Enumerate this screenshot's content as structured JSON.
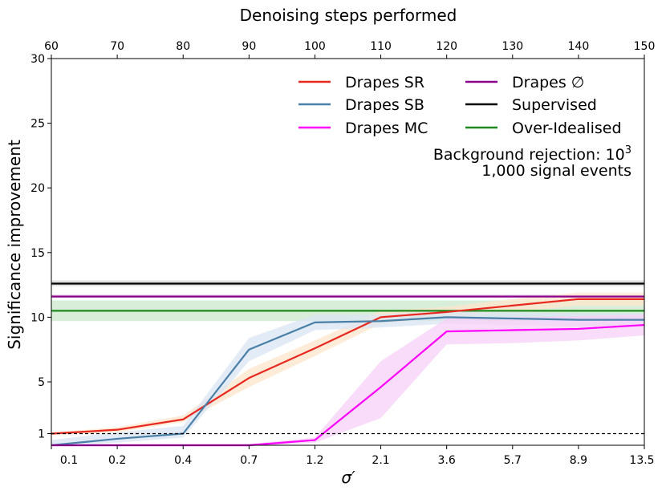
{
  "chart_data": {
    "type": "line",
    "title": "",
    "xlabel": "σ′",
    "top_xlabel": "Denoising steps performed",
    "ylabel": "Significance improvement",
    "x_tick_labels": [
      "0.1",
      "0.2",
      "0.4",
      "0.7",
      "1.2",
      "2.1",
      "3.6",
      "5.7",
      "8.9",
      "13.5"
    ],
    "top_x_tick_labels": [
      "60",
      "70",
      "80",
      "90",
      "100",
      "110",
      "120",
      "130",
      "140",
      "150"
    ],
    "top_xlim": [
      60,
      150
    ],
    "y_ticks": [
      1,
      5,
      10,
      15,
      20,
      25,
      30
    ],
    "ylim": [
      0.1,
      30
    ],
    "x": [
      60,
      70,
      80,
      90,
      100,
      110,
      120,
      130,
      140,
      150
    ],
    "series": [
      {
        "name": "Drapes SR",
        "color": "#e8281e",
        "values": [
          1.0,
          1.3,
          2.1,
          5.3,
          7.6,
          10.0,
          10.4,
          10.9,
          11.4,
          11.4
        ],
        "band_low": [
          0.9,
          1.1,
          1.9,
          4.6,
          7.0,
          9.5,
          10.0,
          10.4,
          10.9,
          10.9
        ],
        "band_high": [
          1.1,
          1.5,
          2.4,
          6.0,
          8.2,
          10.5,
          10.8,
          11.4,
          11.9,
          11.9
        ],
        "band_color": "#fde6cc"
      },
      {
        "name": "Drapes SB",
        "color": "#4a7fa8",
        "values": [
          0.1,
          0.6,
          1.0,
          7.5,
          9.6,
          9.7,
          10.0,
          9.9,
          9.8,
          9.8
        ],
        "band_low": [
          0.0,
          0.3,
          0.7,
          6.6,
          9.0,
          9.2,
          9.5,
          9.4,
          9.3,
          9.3
        ],
        "band_high": [
          0.5,
          1.1,
          1.6,
          8.4,
          10.2,
          10.2,
          10.5,
          10.4,
          10.3,
          10.3
        ],
        "band_color": "#dae6f3"
      },
      {
        "name": "Drapes MC",
        "color": "#ff00ff",
        "values": [
          0.1,
          0.1,
          0.1,
          0.1,
          0.5,
          4.6,
          8.9,
          9.0,
          9.1,
          9.4
        ],
        "band_low": [
          0.0,
          0.0,
          0.0,
          0.0,
          0.3,
          2.2,
          7.9,
          8.0,
          8.2,
          8.6
        ],
        "band_high": [
          0.2,
          0.2,
          0.2,
          0.2,
          0.7,
          6.6,
          9.9,
          10.0,
          10.1,
          10.2
        ],
        "band_color": "#f7d0f7"
      },
      {
        "name": "Drapes ∅",
        "color": "#8b008b",
        "constant": 11.6,
        "band": [
          11.5,
          11.75
        ],
        "band_color": "#e7cfe7"
      },
      {
        "name": "Supervised",
        "color": "#000000",
        "constant": 12.6,
        "band": [
          12.4,
          12.85
        ],
        "band_color": "#dddddd"
      },
      {
        "name": "Over-Idealised",
        "color": "#1e8a1e",
        "constant": 10.5,
        "band": [
          9.7,
          11.3
        ],
        "band_color": "#d5ecd5"
      }
    ],
    "reference_line": {
      "y": 1,
      "style": "dashed"
    },
    "annotation": {
      "line1_base": "Background rejection: 10",
      "line1_exp": "3",
      "line2": "1,000 signal events"
    },
    "legend_position": "upper-right",
    "grid": false
  }
}
